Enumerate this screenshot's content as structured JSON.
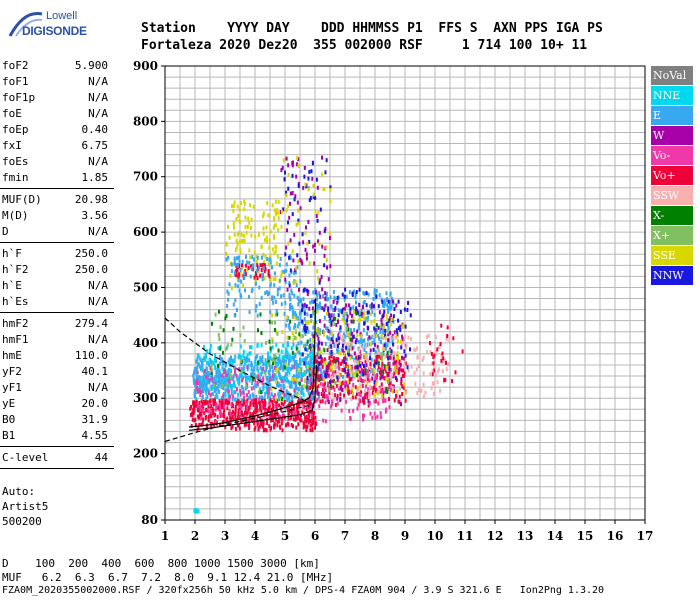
{
  "logo": {
    "top": "Lowell",
    "bottom": "DIGISONDE"
  },
  "header": {
    "labels": "Station    YYYY DAY    DDD HHMMSS P1  FFS S  AXN PPS IGA PS",
    "values": "Fortaleza 2020 Dez20  355 002000 RSF     1 714 100 10+ 11"
  },
  "params": [
    {
      "name": "foF2",
      "value": "5.900"
    },
    {
      "name": "foF1",
      "value": "N/A"
    },
    {
      "name": "foF1p",
      "value": "N/A"
    },
    {
      "name": "foE",
      "value": "N/A"
    },
    {
      "name": "foEp",
      "value": "0.40"
    },
    {
      "name": "fxI",
      "value": "6.75"
    },
    {
      "name": "foEs",
      "value": "N/A"
    },
    {
      "name": "fmin",
      "value": "1.85"
    },
    {
      "sep": true
    },
    {
      "name": "MUF(D)",
      "value": "20.98"
    },
    {
      "name": "M(D)",
      "value": "3.56"
    },
    {
      "name": "D",
      "value": "N/A"
    },
    {
      "sep": true
    },
    {
      "name": "h`F",
      "value": "250.0"
    },
    {
      "name": "h`F2",
      "value": "250.0"
    },
    {
      "name": "h`E",
      "value": "N/A"
    },
    {
      "name": "h`Es",
      "value": "N/A"
    },
    {
      "sep": true
    },
    {
      "name": "hmF2",
      "value": "279.4"
    },
    {
      "name": "hmF1",
      "value": "N/A"
    },
    {
      "name": "hmE",
      "value": "110.0"
    },
    {
      "name": "yF2",
      "value": "40.1"
    },
    {
      "name": "yF1",
      "value": "N/A"
    },
    {
      "name": "yE",
      "value": "20.0"
    },
    {
      "name": "B0",
      "value": "31.9"
    },
    {
      "name": "B1",
      "value": "4.55"
    },
    {
      "sep": true
    },
    {
      "name": "C-level",
      "value": "44"
    },
    {
      "sep": true
    }
  ],
  "auto": [
    "Auto:",
    "Artist5",
    "500200"
  ],
  "legend": [
    {
      "name": "NoVal",
      "color": "#808080"
    },
    {
      "name": "NNE",
      "color": "#00d8f0"
    },
    {
      "name": "E",
      "color": "#38a8f0"
    },
    {
      "name": "W",
      "color": "#a800a8"
    },
    {
      "name": "Vo-",
      "color": "#f038a8"
    },
    {
      "name": "Vo+",
      "color": "#f00038"
    },
    {
      "name": "SSW",
      "color": "#f8b0b0"
    },
    {
      "name": "X-",
      "color": "#008000"
    },
    {
      "name": "X+",
      "color": "#80c060"
    },
    {
      "name": "SSE",
      "color": "#d8d800"
    },
    {
      "name": "NNW",
      "color": "#1818e0"
    }
  ],
  "footer": {
    "d_row": "D    100  200  400  600  800 1000 1500 3000 [km]",
    "muf_row": "MUF   6.2  6.3  6.7  7.2  8.0  9.1 12.4 21.0 [MHz]",
    "info": "FZA0M_2020355002000.RSF / 320fx256h 50 kHz 5.0 km / DPS-4 FZA0M 904 / 3.9 S 321.6 E   Ion2Png 1.3.20"
  },
  "chart_data": {
    "type": "scatter",
    "xlim": [
      1,
      17
    ],
    "ylim": [
      80,
      900
    ],
    "x_ticks": [
      1,
      2,
      3,
      4,
      5,
      6,
      7,
      8,
      9,
      10,
      11,
      12,
      13,
      14,
      15,
      16,
      17
    ],
    "y_ticks": [
      80,
      200,
      300,
      400,
      500,
      600,
      700,
      800,
      900
    ],
    "grid": true,
    "legend_position": "right",
    "clusters": [
      {
        "series": "E",
        "fmin": 1.9,
        "fmax": 6.2,
        "hmin": 300,
        "hmax": 380,
        "n": 520
      },
      {
        "series": "E",
        "fmin": 5.0,
        "fmax": 8.6,
        "hmin": 340,
        "hmax": 500,
        "n": 380
      },
      {
        "series": "E",
        "fmin": 2.0,
        "fmax": 3.2,
        "hmin": 315,
        "hmax": 345,
        "n": 110
      },
      {
        "series": "NNE",
        "fmin": 2.0,
        "fmax": 6.0,
        "hmin": 290,
        "hmax": 400,
        "n": 160
      },
      {
        "series": "Vo+",
        "fmin": 1.8,
        "fmax": 6.0,
        "hmin": 245,
        "hmax": 300,
        "n": 480
      },
      {
        "series": "Vo+",
        "fmin": 5.8,
        "fmax": 9.0,
        "hmin": 290,
        "hmax": 380,
        "n": 260
      },
      {
        "series": "Vo-",
        "fmin": 2.0,
        "fmax": 8.5,
        "hmin": 260,
        "hmax": 360,
        "n": 230
      },
      {
        "series": "W",
        "fmin": 5.8,
        "fmax": 9.0,
        "hmin": 290,
        "hmax": 480,
        "n": 150
      },
      {
        "series": "SSW",
        "fmin": 6.5,
        "fmax": 10.5,
        "hmin": 300,
        "hmax": 420,
        "n": 150
      },
      {
        "series": "NNW",
        "fmin": 5.5,
        "fmax": 9.2,
        "hmin": 330,
        "hmax": 500,
        "n": 130
      },
      {
        "series": "SSE",
        "fmin": 4.5,
        "fmax": 9.0,
        "hmin": 300,
        "hmax": 460,
        "n": 130
      },
      {
        "series": "X-",
        "fmin": 2.5,
        "fmax": 8.5,
        "hmin": 300,
        "hmax": 460,
        "n": 60
      },
      {
        "series": "X+",
        "fmin": 2.5,
        "fmax": 8.5,
        "hmin": 300,
        "hmax": 460,
        "n": 70
      },
      {
        "series": "SSE",
        "fmin": 3.0,
        "fmax": 4.8,
        "hmin": 500,
        "hmax": 660,
        "n": 120
      },
      {
        "series": "Vo+",
        "fmin": 3.3,
        "fmax": 4.5,
        "hmin": 520,
        "hmax": 545,
        "n": 45
      },
      {
        "series": "E",
        "fmin": 3.0,
        "fmax": 5.5,
        "hmin": 450,
        "hmax": 560,
        "n": 120
      },
      {
        "series": "W",
        "fmin": 4.8,
        "fmax": 6.5,
        "hmin": 460,
        "hmax": 740,
        "n": 70
      },
      {
        "series": "NNW",
        "fmin": 4.8,
        "fmax": 6.5,
        "hmin": 480,
        "hmax": 740,
        "n": 40
      },
      {
        "series": "SSE",
        "fmin": 4.8,
        "fmax": 6.5,
        "hmin": 480,
        "hmax": 740,
        "n": 40
      },
      {
        "series": "Vo+",
        "fmin": 9.8,
        "fmax": 11.0,
        "hmin": 330,
        "hmax": 440,
        "n": 22
      },
      {
        "series": "NNE",
        "fmin": 1.9,
        "fmax": 2.1,
        "hmin": 98,
        "hmax": 102,
        "n": 8
      }
    ],
    "curves": [
      {
        "name": "trace-inner",
        "style": "solid",
        "points": [
          [
            1.8,
            248
          ],
          [
            2.5,
            252
          ],
          [
            3.0,
            256
          ],
          [
            3.5,
            262
          ],
          [
            4.0,
            268
          ],
          [
            4.5,
            275
          ],
          [
            5.0,
            283
          ],
          [
            5.5,
            292
          ],
          [
            5.8,
            300
          ],
          [
            5.95,
            320
          ],
          [
            6.0,
            420
          ],
          [
            6.02,
            480
          ]
        ]
      },
      {
        "name": "trace-outer",
        "style": "solid",
        "points": [
          [
            1.8,
            242
          ],
          [
            2.5,
            246
          ],
          [
            3.0,
            250
          ],
          [
            3.5,
            254
          ],
          [
            4.0,
            258
          ],
          [
            4.5,
            262
          ],
          [
            5.0,
            266
          ],
          [
            5.5,
            270
          ],
          [
            5.9,
            278
          ],
          [
            6.0,
            300
          ],
          [
            6.05,
            360
          ]
        ]
      },
      {
        "name": "profile",
        "style": "dashed",
        "points": [
          [
            1.0,
            445
          ],
          [
            1.5,
            420
          ],
          [
            2.0,
            400
          ],
          [
            2.5,
            380
          ],
          [
            3.0,
            365
          ],
          [
            3.5,
            350
          ],
          [
            4.0,
            336
          ],
          [
            4.5,
            322
          ],
          [
            5.0,
            310
          ],
          [
            5.5,
            300
          ],
          [
            5.85,
            290
          ]
        ]
      },
      {
        "name": "profile-lower",
        "style": "dashed",
        "points": [
          [
            1.0,
            222
          ],
          [
            1.5,
            230
          ],
          [
            2.0,
            238
          ],
          [
            2.5,
            245
          ],
          [
            3.0,
            252
          ],
          [
            3.5,
            258
          ],
          [
            4.0,
            264
          ],
          [
            4.5,
            270
          ],
          [
            5.0,
            276
          ],
          [
            5.5,
            283
          ],
          [
            5.9,
            288
          ]
        ]
      }
    ]
  }
}
